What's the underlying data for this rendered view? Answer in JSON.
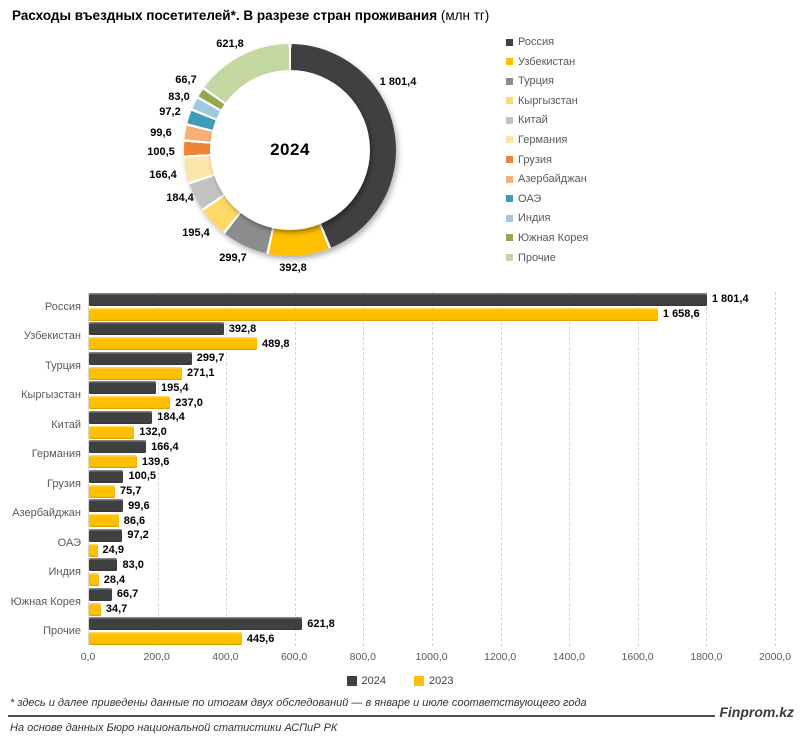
{
  "title": {
    "main": "Расходы въездных посетителей*. В разрезе стран проживания",
    "unit": " (млн тг)"
  },
  "chart_data": [
    {
      "type": "pie",
      "subtype": "donut",
      "center_label": "2024",
      "categories": [
        "Россия",
        "Узбекистан",
        "Турция",
        "Кыргызстан",
        "Китай",
        "Германия",
        "Грузия",
        "Азербайджан",
        "ОАЭ",
        "Индия",
        "Южная Корея",
        "Прочие"
      ],
      "values": [
        1801.4,
        392.8,
        299.7,
        195.4,
        184.4,
        166.4,
        100.5,
        99.6,
        97.2,
        83.0,
        66.7,
        621.8
      ],
      "labels": [
        "1 801,4",
        "392,8",
        "299,7",
        "195,4",
        "184,4",
        "166,4",
        "100,5",
        "99,6",
        "97,2",
        "83,0",
        "66,7",
        "621,8"
      ],
      "colors": [
        "#404040",
        "#FFC000",
        "#8C8C8C",
        "#FFD966",
        "#C3C3C3",
        "#FBE5A8",
        "#EE8435",
        "#F5B078",
        "#3D9CB8",
        "#9FC9DE",
        "#93A850",
        "#C3D7A0"
      ],
      "legend_position": "right",
      "start_angle_deg": 0,
      "direction": "clockwise"
    },
    {
      "type": "bar",
      "orientation": "horizontal",
      "categories": [
        "Россия",
        "Узбекистан",
        "Турция",
        "Кыргызстан",
        "Китай",
        "Германия",
        "Грузия",
        "Азербайджан",
        "ОАЭ",
        "Индия",
        "Южная Корея",
        "Прочие"
      ],
      "series": [
        {
          "name": "2024",
          "color": "#404040",
          "values": [
            1801.4,
            392.8,
            299.7,
            195.4,
            184.4,
            166.4,
            100.5,
            99.6,
            97.2,
            83.0,
            66.7,
            621.8
          ],
          "labels": [
            "1 801,4",
            "392,8",
            "299,7",
            "195,4",
            "184,4",
            "166,4",
            "100,5",
            "99,6",
            "97,2",
            "83,0",
            "66,7",
            "621,8"
          ]
        },
        {
          "name": "2023",
          "color": "#FFC000",
          "values": [
            1658.6,
            489.8,
            271.1,
            237.0,
            132.0,
            139.6,
            75.7,
            86.6,
            24.9,
            28.4,
            34.7,
            445.6
          ],
          "labels": [
            "1 658,6",
            "489,8",
            "271,1",
            "237,0",
            "132,0",
            "139,6",
            "75,7",
            "86,6",
            "24,9",
            "28,4",
            "34,7",
            "445,6"
          ]
        }
      ],
      "xlim": [
        0,
        2000
      ],
      "x_ticks": [
        "0,0",
        "200,0",
        "400,0",
        "600,0",
        "800,0",
        "1000,0",
        "1200,0",
        "1400,0",
        "1600,0",
        "1800,0",
        "2000,0"
      ],
      "grid": "dashed-vertical",
      "legend_position": "bottom"
    }
  ],
  "footer": {
    "footnote": "* здесь и далее приведены данные по итогам двух обследований — в январе и июле соответствующего года",
    "source": "На основе данных Бюро национальной статистики АСПиР РК",
    "brand": "Finprom.kz"
  }
}
